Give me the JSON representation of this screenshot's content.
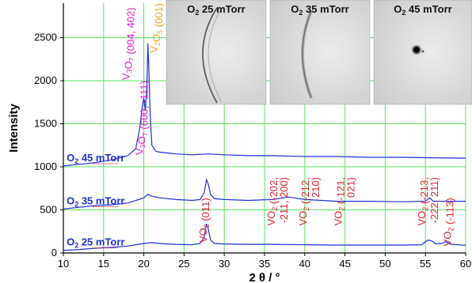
{
  "chart_data": {
    "type": "line",
    "xlabel": "2 θ / °",
    "ylabel": "Intensity",
    "xlim": [
      10,
      60
    ],
    "ylim": [
      0,
      2900
    ],
    "xticks": [
      10,
      15,
      20,
      25,
      30,
      35,
      40,
      45,
      50,
      55,
      60
    ],
    "yticks": [
      0,
      500,
      1000,
      1500,
      2000,
      2500
    ],
    "grid": true,
    "colors": {
      "series": "#1f2fd6",
      "vo2": "#e4202a",
      "v3o7": "#e21ad2",
      "v2o5": "#f2a314",
      "grid": "#5ee05e"
    },
    "series": [
      {
        "name": "O2 25 mTorr",
        "label_main": "O",
        "label_sub": "2",
        "label_rest": " 25 mTorr",
        "x": [
          10,
          12,
          14,
          16,
          18,
          20,
          21,
          22,
          24,
          26,
          27,
          27.5,
          27.8,
          28.0,
          28.3,
          28.8,
          30,
          33,
          36,
          40,
          44,
          48,
          52,
          54.5,
          55.3,
          55.8,
          56.3,
          57,
          57.5,
          58.2,
          60
        ],
        "y": [
          30,
          40,
          55,
          65,
          80,
          110,
          120,
          110,
          100,
          95,
          110,
          180,
          340,
          280,
          150,
          110,
          105,
          100,
          100,
          95,
          92,
          92,
          92,
          95,
          150,
          140,
          105,
          110,
          130,
          100,
          90
        ]
      },
      {
        "name": "O2 35 mTorr",
        "label_main": "O",
        "label_sub": "2",
        "label_rest": " 35 mTorr",
        "x": [
          10,
          12,
          14,
          16,
          18,
          20,
          20.5,
          21,
          22,
          24,
          26,
          27,
          27.5,
          27.8,
          28.0,
          28.3,
          28.8,
          30,
          33,
          36,
          38,
          40,
          44,
          48,
          52,
          55,
          55.5,
          56,
          58,
          60
        ],
        "y": [
          510,
          530,
          550,
          560,
          580,
          640,
          680,
          660,
          640,
          620,
          610,
          620,
          700,
          850,
          800,
          680,
          630,
          620,
          610,
          620,
          650,
          620,
          600,
          600,
          595,
          600,
          640,
          600,
          600,
          600
        ]
      },
      {
        "name": "O2 45 mTorr",
        "label_main": "O",
        "label_sub": "2",
        "label_rest": " 45 mTorr",
        "x": [
          10,
          12,
          14,
          16,
          18,
          19,
          19.5,
          19.8,
          20.0,
          20.2,
          20.4,
          20.5,
          20.6,
          20.8,
          21,
          21.5,
          22,
          23,
          24,
          26,
          28,
          30,
          33,
          36,
          40,
          44,
          48,
          52,
          56,
          60
        ],
        "y": [
          1010,
          1030,
          1050,
          1080,
          1130,
          1210,
          1450,
          1700,
          1800,
          1650,
          2000,
          2430,
          2200,
          1600,
          1250,
          1180,
          1170,
          1160,
          1150,
          1140,
          1150,
          1140,
          1130,
          1130,
          1120,
          1120,
          1110,
          1110,
          1105,
          1100
        ]
      }
    ],
    "peak_labels": [
      {
        "text": "V3O7 (004, 402)",
        "parts": [
          [
            "V",
            ""
          ],
          [
            "3",
            "sub"
          ],
          [
            "O",
            ""
          ],
          [
            "7",
            "sub"
          ],
          [
            " (004, 402)",
            ""
          ]
        ],
        "x": 18.2,
        "y": 2850,
        "color": "v3o7"
      },
      {
        "text": "V2O5 (001)",
        "parts": [
          [
            "V",
            ""
          ],
          [
            "2",
            "sub"
          ],
          [
            "O",
            ""
          ],
          [
            "5",
            "sub"
          ],
          [
            " (001)",
            ""
          ]
        ],
        "x": 21.7,
        "y": 2900,
        "color": "v2o5"
      },
      {
        "text": "V3O7 (600, -111)",
        "parts": [
          [
            "V",
            ""
          ],
          [
            "3",
            "sub"
          ],
          [
            "O",
            ""
          ],
          [
            "7",
            "sub"
          ],
          [
            " (600, -111)",
            ""
          ]
        ],
        "x": 19.9,
        "y": 2000,
        "color": "v3o7"
      },
      {
        "text": "VO2 (011)",
        "parts": [
          [
            "VO",
            ""
          ],
          [
            "2",
            "sub"
          ],
          [
            " (011)",
            ""
          ]
        ],
        "x": 27.8,
        "y": 640,
        "color": "vo2"
      },
      {
        "text": "VO2 (-202, -211, 200)",
        "parts": [
          [
            "VO",
            ""
          ],
          [
            "2",
            "sub"
          ],
          [
            " (-202,",
            ""
          ]
        ],
        "parts2": "-211, 200)",
        "x": 36.3,
        "y": 880,
        "color": "vo2"
      },
      {
        "text": "VO2 (-212, 210)",
        "parts": [
          [
            "VO",
            ""
          ],
          [
            "2",
            "sub"
          ],
          [
            " (-212,",
            ""
          ]
        ],
        "parts2": "210)",
        "x": 40.2,
        "y": 880,
        "color": "vo2"
      },
      {
        "text": "VO2 (-121, 021)",
        "parts": [
          [
            "VO",
            ""
          ],
          [
            "2",
            "sub"
          ],
          [
            " (-121,",
            ""
          ]
        ],
        "parts2": "021)",
        "x": 44.6,
        "y": 880,
        "color": "vo2"
      },
      {
        "text": "VO2 (-213, -222, 211)",
        "parts": [
          [
            "VO",
            ""
          ],
          [
            "2",
            "sub"
          ],
          [
            " (-213,",
            ""
          ]
        ],
        "parts2": "-222, 211)",
        "x": 55.0,
        "y": 880,
        "color": "vo2"
      },
      {
        "text": "VO2 (-113)",
        "parts": [
          [
            "VO",
            ""
          ],
          [
            "2",
            "sub"
          ],
          [
            " (-113)",
            ""
          ]
        ],
        "x": 58.2,
        "y": 640,
        "color": "vo2"
      }
    ],
    "insets": [
      {
        "title": "O2 25 mTorr",
        "t_main": "O",
        "t_sub": "2",
        "t_rest": " 25 mTorr",
        "pattern": "arc"
      },
      {
        "title": "O2 35 mTorr",
        "t_main": "O",
        "t_sub": "2",
        "t_rest": " 35 mTorr",
        "pattern": "arc-diffuse"
      },
      {
        "title": "O2 45 mTorr",
        "t_main": "O",
        "t_sub": "2",
        "t_rest": " 45 mTorr",
        "pattern": "spot"
      }
    ]
  }
}
